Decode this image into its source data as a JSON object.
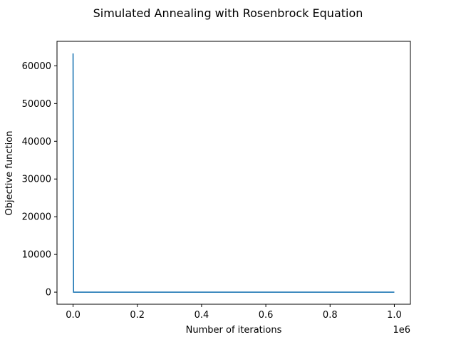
{
  "chart_data": {
    "type": "line",
    "title": "Simulated Annealing with Rosenbrock Equation",
    "xlabel": "Number of iterations",
    "ylabel": "Objective function",
    "x_offset_label": "1e6",
    "xlim": [
      -50000,
      1050000
    ],
    "ylim": [
      -3200,
      66500
    ],
    "x_ticks": [
      0,
      200000,
      400000,
      600000,
      800000,
      1000000
    ],
    "x_tick_labels": [
      "0.0",
      "0.2",
      "0.4",
      "0.6",
      "0.8",
      "1.0"
    ],
    "y_ticks": [
      0,
      10000,
      20000,
      30000,
      40000,
      50000,
      60000
    ],
    "y_tick_labels": [
      "0",
      "10000",
      "20000",
      "30000",
      "40000",
      "50000",
      "60000"
    ],
    "grid": false,
    "series": [
      {
        "color": "#1f77b4",
        "x": [
          0,
          1500,
          1000000
        ],
        "y": [
          63300,
          0,
          0
        ]
      }
    ]
  }
}
